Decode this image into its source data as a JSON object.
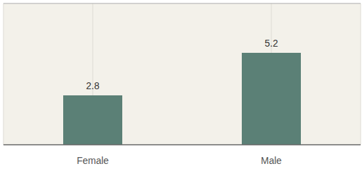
{
  "chart_data": {
    "type": "bar",
    "categories": [
      "Female",
      "Male"
    ],
    "values": [
      2.8,
      5.2
    ],
    "color": "#5b8076",
    "ylim": [
      0,
      8
    ],
    "grid": true,
    "data_labels": true,
    "tick_labels": "x"
  }
}
